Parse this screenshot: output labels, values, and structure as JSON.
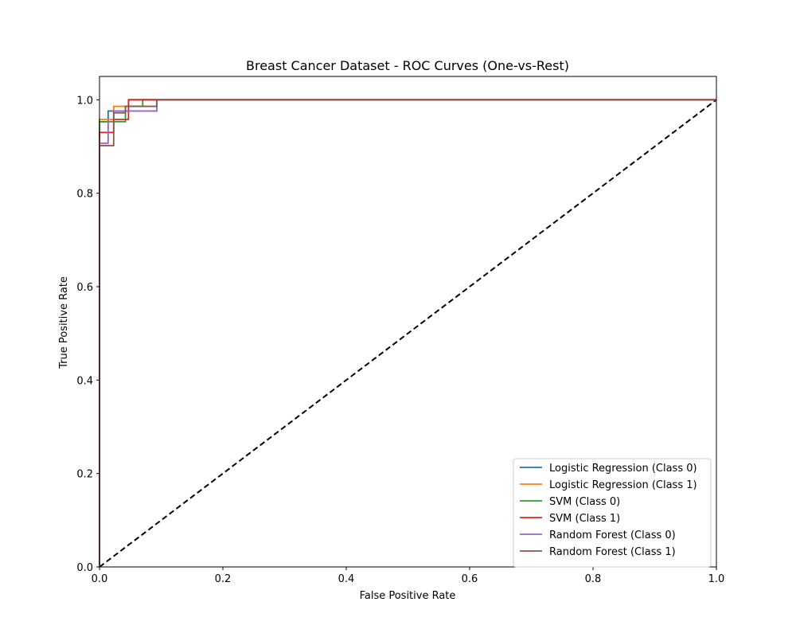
{
  "chart_data": {
    "type": "line",
    "title": "Breast Cancer Dataset - ROC Curves (One-vs-Rest)",
    "xlabel": "False Positive Rate",
    "ylabel": "True Positive Rate",
    "xlim": [
      0.0,
      1.0
    ],
    "ylim": [
      0.0,
      1.05
    ],
    "xticks": [
      0.0,
      0.2,
      0.4,
      0.6,
      0.8,
      1.0
    ],
    "yticks": [
      0.0,
      0.2,
      0.4,
      0.6,
      0.8,
      1.0
    ],
    "xtick_labels": [
      "0.0",
      "0.2",
      "0.4",
      "0.6",
      "0.8",
      "1.0"
    ],
    "ytick_labels": [
      "0.0",
      "0.2",
      "0.4",
      "0.6",
      "0.8",
      "1.0"
    ],
    "grid": false,
    "legend_position": "lower-right",
    "series": [
      {
        "name": "Logistic Regression (Class 0)",
        "color": "#1f77b4",
        "x": [
          0.0,
          0.0,
          0.014,
          0.014,
          0.047,
          0.047,
          1.0
        ],
        "y": [
          0.0,
          0.953,
          0.953,
          0.976,
          0.976,
          1.0,
          1.0
        ]
      },
      {
        "name": "Logistic Regression (Class 1)",
        "color": "#ff7f0e",
        "x": [
          0.0,
          0.0,
          0.023,
          0.023,
          0.047,
          0.047,
          1.0
        ],
        "y": [
          0.0,
          0.958,
          0.958,
          0.986,
          0.986,
          1.0,
          1.0
        ]
      },
      {
        "name": "SVM (Class 0)",
        "color": "#2ca02c",
        "x": [
          0.0,
          0.0,
          0.042,
          0.042,
          0.07,
          0.07,
          1.0
        ],
        "y": [
          0.0,
          0.953,
          0.953,
          0.986,
          0.986,
          1.0,
          1.0
        ]
      },
      {
        "name": "SVM (Class 1)",
        "color": "#d62728",
        "x": [
          0.0,
          0.0,
          0.023,
          0.023,
          0.047,
          0.047,
          1.0
        ],
        "y": [
          0.0,
          0.93,
          0.93,
          0.958,
          0.958,
          1.0,
          1.0
        ]
      },
      {
        "name": "Random Forest (Class 0)",
        "color": "#9467bd",
        "x": [
          0.0,
          0.0,
          0.014,
          0.014,
          0.023,
          0.023,
          0.093,
          0.093,
          1.0
        ],
        "y": [
          0.0,
          0.907,
          0.907,
          0.953,
          0.953,
          0.976,
          0.976,
          1.0,
          1.0
        ]
      },
      {
        "name": "Random Forest (Class 1)",
        "color": "#8c564b",
        "x": [
          0.0,
          0.0,
          0.023,
          0.023,
          0.042,
          0.042,
          0.093,
          0.093,
          1.0
        ],
        "y": [
          0.0,
          0.902,
          0.902,
          0.972,
          0.972,
          0.986,
          0.986,
          1.0,
          1.0
        ]
      }
    ],
    "reference_line": {
      "color": "#000000",
      "x": [
        0.0,
        1.0
      ],
      "y": [
        0.0,
        1.0
      ]
    }
  }
}
